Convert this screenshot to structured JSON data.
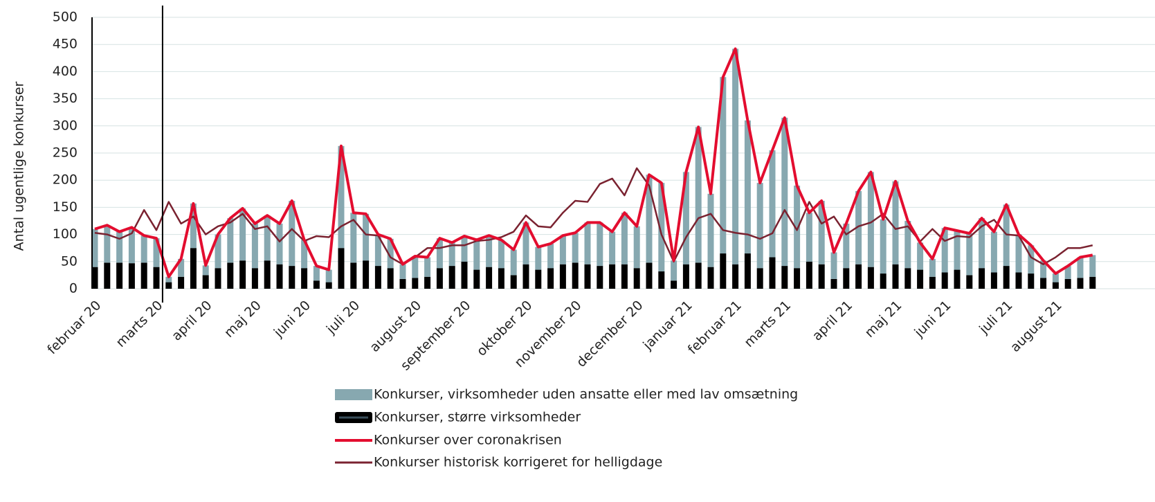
{
  "chart_data": {
    "type": "bar",
    "ylabel": "Antal ugentlige konkurser",
    "categories": [
      "februar 20",
      null,
      null,
      null,
      null,
      "marts 20",
      null,
      null,
      null,
      "april 20",
      null,
      null,
      null,
      "maj 20",
      null,
      null,
      null,
      "juni 20",
      null,
      null,
      null,
      "juli 20",
      null,
      null,
      null,
      null,
      "august 20",
      null,
      null,
      null,
      "september 20",
      null,
      null,
      null,
      null,
      "oktober 20",
      null,
      null,
      null,
      "november 20",
      null,
      null,
      null,
      null,
      "december 20",
      null,
      null,
      null,
      "januar 21",
      null,
      null,
      null,
      "februar 21",
      null,
      null,
      null,
      "marts 21",
      null,
      null,
      null,
      null,
      "april 21",
      null,
      null,
      null,
      "maj 21",
      null,
      null,
      null,
      "juni 21",
      null,
      null,
      null,
      null,
      "juli 21",
      null,
      null,
      null,
      "august 21",
      null,
      null,
      null
    ],
    "series": [
      {
        "name": "Konkurser, virksomheder uden ansatte eller med lav omsætning",
        "color": "#87a8b0",
        "values": [
          70,
          69,
          57,
          66,
          50,
          53,
          10,
          33,
          82,
          18,
          62,
          82,
          96,
          82,
          83,
          75,
          120,
          52,
          27,
          23,
          188,
          92,
          86,
          58,
          54,
          27,
          40,
          36,
          55,
          43,
          47,
          55,
          58,
          52,
          47,
          77,
          42,
          45,
          53,
          55,
          77,
          80,
          60,
          95,
          77,
          162,
          163,
          37,
          170,
          250,
          135,
          325,
          397,
          245,
          157,
          197,
          273,
          152,
          90,
          117,
          49,
          82,
          135,
          175,
          100,
          153,
          87,
          50,
          33,
          82,
          72,
          77,
          92,
          75,
          113,
          70,
          52,
          32,
          16,
          24,
          38,
          40
        ]
      },
      {
        "name": "Konkurser, større virksomheder",
        "color": "#000000",
        "values": [
          40,
          48,
          48,
          47,
          48,
          40,
          12,
          22,
          75,
          25,
          38,
          48,
          52,
          38,
          52,
          45,
          42,
          38,
          15,
          12,
          75,
          48,
          52,
          42,
          38,
          18,
          20,
          22,
          38,
          42,
          50,
          35,
          40,
          38,
          25,
          45,
          35,
          38,
          45,
          48,
          45,
          42,
          45,
          45,
          38,
          48,
          32,
          15,
          45,
          48,
          40,
          65,
          45,
          65,
          38,
          58,
          42,
          38,
          50,
          45,
          18,
          38,
          45,
          40,
          28,
          45,
          38,
          35,
          22,
          30,
          35,
          25,
          38,
          30,
          42,
          30,
          28,
          20,
          12,
          18,
          20,
          22
        ]
      },
      {
        "name": "Konkurser over coronakrisen",
        "color": "#e30d2f",
        "values": [
          110,
          117,
          105,
          113,
          98,
          93,
          22,
          55,
          157,
          43,
          100,
          130,
          148,
          120,
          135,
          120,
          162,
          90,
          42,
          35,
          263,
          140,
          138,
          100,
          92,
          45,
          60,
          58,
          93,
          85,
          97,
          90,
          98,
          90,
          72,
          122,
          77,
          83,
          98,
          103,
          122,
          122,
          105,
          140,
          115,
          210,
          195,
          52,
          215,
          298,
          175,
          390,
          442,
          310,
          195,
          255,
          315,
          190,
          140,
          162,
          67,
          120,
          180,
          215,
          128,
          198,
          125,
          85,
          55,
          112,
          107,
          102,
          130,
          105,
          155,
          100,
          80,
          52,
          28,
          42,
          58,
          62
        ]
      },
      {
        "name": "Konkurser historisk korrigeret for helligdage",
        "color": "#7a2230",
        "values": [
          103,
          100,
          92,
          102,
          145,
          108,
          160,
          120,
          133,
          100,
          115,
          122,
          138,
          110,
          115,
          87,
          110,
          88,
          97,
          95,
          115,
          127,
          100,
          98,
          58,
          45,
          58,
          75,
          75,
          80,
          80,
          88,
          90,
          95,
          105,
          135,
          115,
          113,
          140,
          162,
          160,
          193,
          203,
          172,
          222,
          190,
          100,
          50,
          95,
          130,
          138,
          108,
          103,
          100,
          92,
          102,
          145,
          108,
          160,
          120,
          133,
          100,
          115,
          122,
          138,
          110,
          115,
          87,
          110,
          88,
          97,
          95,
          115,
          127,
          100,
          98,
          58,
          45,
          58,
          75,
          75,
          80
        ]
      }
    ],
    "ylim": [
      0,
      500
    ],
    "yticks": [
      0,
      50,
      100,
      150,
      200,
      250,
      300,
      350,
      400,
      450,
      500
    ],
    "grid": true
  }
}
